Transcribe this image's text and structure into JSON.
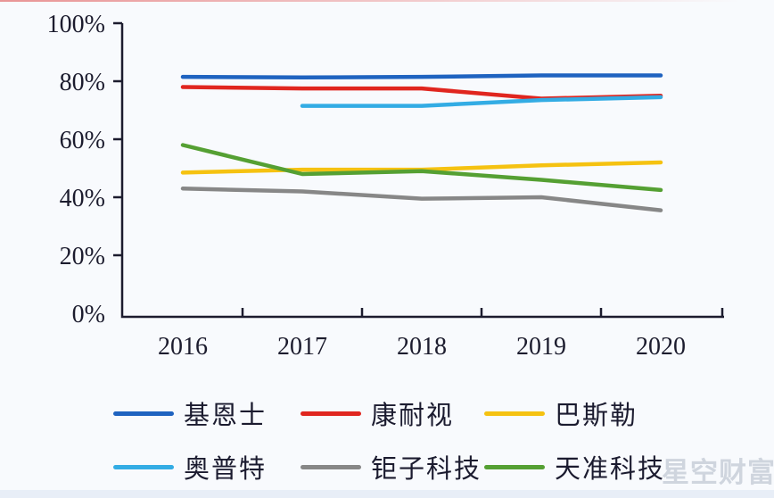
{
  "page": {
    "background": "#f8fafd",
    "watermark": "星空财富",
    "text_color": "#1c1c2e"
  },
  "chart_data": {
    "type": "line",
    "title": "",
    "xlabel": "",
    "ylabel": "",
    "categories": [
      "2016",
      "2017",
      "2018",
      "2019",
      "2020"
    ],
    "y_ticks": [
      "0%",
      "20%",
      "40%",
      "60%",
      "80%",
      "100%"
    ],
    "ylim": [
      0,
      100
    ],
    "grid": false,
    "legend_position": "bottom",
    "series": [
      {
        "name": "基恩士",
        "color": "#1f63c0",
        "values": [
          81.5,
          81.3,
          81.5,
          82,
          82
        ]
      },
      {
        "name": "康耐视",
        "color": "#e0261f",
        "values": [
          78,
          77.5,
          77.5,
          74,
          75
        ]
      },
      {
        "name": "巴斯勒",
        "color": "#f5c211",
        "values": [
          48.5,
          49.5,
          49.5,
          51,
          52
        ]
      },
      {
        "name": "奥普特",
        "color": "#33ace4",
        "values": [
          null,
          71.5,
          71.5,
          73.5,
          74.5
        ]
      },
      {
        "name": "钜子科技",
        "color": "#878787",
        "values": [
          43,
          42,
          39.5,
          40,
          35.5
        ]
      },
      {
        "name": "天准科技",
        "color": "#55a033",
        "values": [
          58,
          48,
          49,
          46,
          42.5
        ]
      }
    ]
  }
}
